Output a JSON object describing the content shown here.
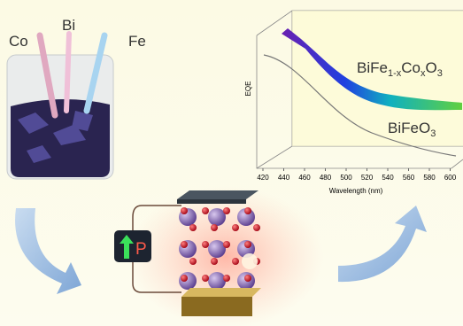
{
  "beaker": {
    "labels": [
      "Co",
      "Bi",
      "Fe"
    ]
  },
  "plot": {
    "y_label": "EQE",
    "x_label": "Wavelength (nm)",
    "xticks": [
      420,
      440,
      460,
      480,
      500,
      520,
      540,
      560,
      580,
      600
    ],
    "curves": [
      {
        "formula": [
          {
            "text": "BiFe"
          },
          {
            "text": "1-x",
            "sub": true
          },
          {
            "text": "Co"
          },
          {
            "text": "x",
            "sub": true
          },
          {
            "text": "O"
          },
          {
            "text": "3",
            "sub": true
          }
        ]
      },
      {
        "formula": [
          {
            "text": "BiFeO"
          },
          {
            "text": "3",
            "sub": true
          }
        ]
      }
    ]
  },
  "device": {
    "polarization_label": "P"
  }
}
